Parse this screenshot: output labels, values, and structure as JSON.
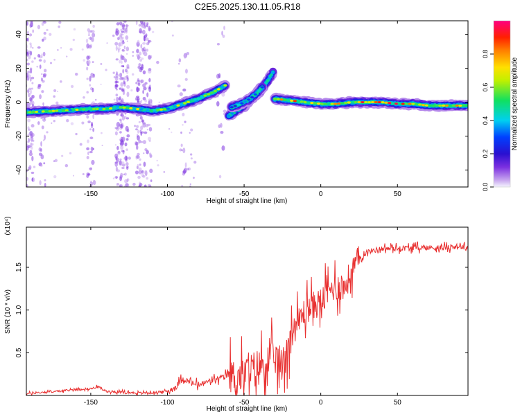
{
  "title": "C2E5.2025.130.11.05.R18",
  "colorbar": {
    "label": "Normalized spectral amplitude",
    "ticks": [
      "0.0",
      "0.2",
      "0.4",
      "0.6",
      "0.8"
    ],
    "tick_values": [
      0.0,
      0.2,
      0.4,
      0.6,
      0.8
    ],
    "range": [
      0,
      1
    ]
  },
  "chart_data": [
    {
      "type": "heatmap",
      "xlabel": "Height of straight line (km)",
      "ylabel": "Frequency (Hz)",
      "xlim": [
        -192,
        96
      ],
      "ylim": [
        -50,
        48
      ],
      "xticks": [
        -150,
        -100,
        -50,
        0,
        50
      ],
      "yticks": [
        -40,
        -20,
        0,
        20,
        40
      ],
      "tracks": [
        {
          "x": [
            -192,
            -170,
            -150,
            -140,
            -130,
            -120,
            -110,
            -100,
            -90,
            -80,
            -70,
            -62
          ],
          "y": [
            -6,
            -5,
            -4,
            -4,
            -3,
            -4,
            -5,
            -4,
            -1,
            2,
            6,
            10
          ],
          "amplitude": 0.55
        },
        {
          "x": [
            -60,
            -55,
            -50,
            -45,
            -40,
            -35,
            -31
          ],
          "y": [
            -8,
            -5,
            -2,
            2,
            6,
            12,
            18
          ],
          "amplitude": 0.45
        },
        {
          "x": [
            -58,
            -52,
            -46,
            -42,
            -38
          ],
          "y": [
            -3,
            -1,
            2,
            5,
            9
          ],
          "amplitude": 0.4
        },
        {
          "x": [
            -30,
            -20,
            -10,
            0,
            10,
            20,
            30,
            40,
            50,
            60,
            70,
            80,
            90,
            96
          ],
          "y": [
            2,
            1,
            0,
            -1,
            -1,
            0,
            0,
            0,
            -1,
            -1,
            -2,
            -2,
            -2,
            -2
          ],
          "amplitude": 0.75
        }
      ]
    },
    {
      "type": "line",
      "xlabel": "Height of straight line (km)",
      "ylabel": "SNR (10 * v/v)",
      "scale_label": "(x10⁴)",
      "xlim": [
        -192,
        96
      ],
      "ylim": [
        0,
        1.97
      ],
      "xticks": [
        -150,
        -100,
        -50,
        0,
        50
      ],
      "yticks": [
        0.5,
        1.0,
        1.5
      ],
      "ytick_labels": [
        "0.5",
        "1.0",
        "1.5"
      ],
      "series": [
        {
          "color": "#e83030",
          "x": [
            -192,
            -180,
            -170,
            -160,
            -150,
            -145,
            -140,
            -130,
            -120,
            -110,
            -100,
            -95,
            -90,
            -85,
            -80,
            -75,
            -70,
            -65,
            -60,
            -55,
            -50,
            -45,
            -40,
            -35,
            -30,
            -25,
            -20,
            -15,
            -10,
            -5,
            0,
            5,
            10,
            15,
            20,
            25,
            30,
            40,
            50,
            60,
            70,
            80,
            90,
            96
          ],
          "values": [
            0.02,
            0.04,
            0.05,
            0.07,
            0.08,
            0.1,
            0.05,
            0.04,
            0.03,
            0.03,
            0.05,
            0.09,
            0.2,
            0.15,
            0.12,
            0.15,
            0.18,
            0.2,
            0.25,
            0.2,
            0.25,
            0.3,
            0.35,
            0.4,
            0.45,
            0.35,
            0.7,
            0.85,
            1.0,
            1.05,
            1.1,
            1.2,
            1.3,
            1.25,
            1.45,
            1.6,
            1.68,
            1.72,
            1.72,
            1.73,
            1.73,
            1.73,
            1.75,
            1.72
          ]
        }
      ]
    }
  ]
}
